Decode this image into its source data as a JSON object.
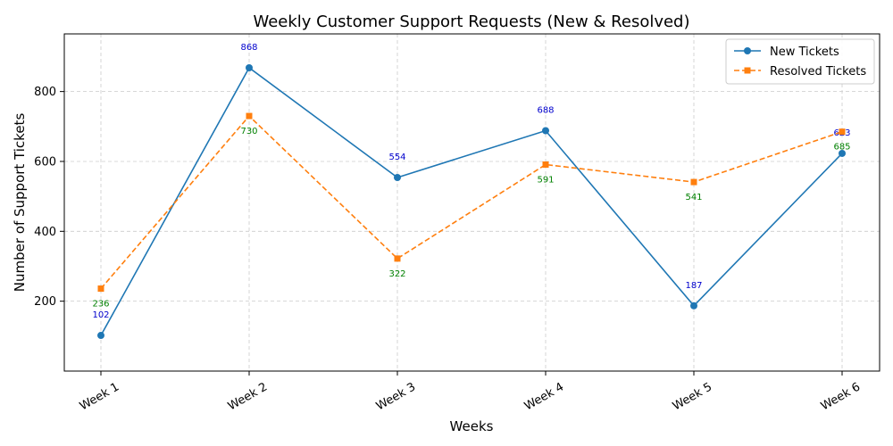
{
  "chart_data": {
    "type": "line",
    "title": "Weekly Customer Support Requests (New & Resolved)",
    "xlabel": "Weeks",
    "ylabel": "Number of Support Tickets",
    "categories": [
      "Week 1",
      "Week 2",
      "Week 3",
      "Week 4",
      "Week 5",
      "Week 6"
    ],
    "ylim": [
      0,
      965
    ],
    "yticks": [
      200,
      400,
      600,
      800
    ],
    "grid": true,
    "legend_position": "top-right",
    "series": [
      {
        "name": "New Tickets",
        "values": [
          102,
          868,
          554,
          688,
          187,
          623
        ],
        "color": "#1f77b4",
        "label_color": "#0000cd",
        "line_style": "solid",
        "marker": "circle",
        "label_position": "above"
      },
      {
        "name": "Resolved Tickets",
        "values": [
          236,
          730,
          322,
          591,
          541,
          685
        ],
        "color": "#ff7f0e",
        "label_color": "#008000",
        "line_style": "dashed",
        "marker": "square",
        "label_position": "below"
      }
    ]
  }
}
